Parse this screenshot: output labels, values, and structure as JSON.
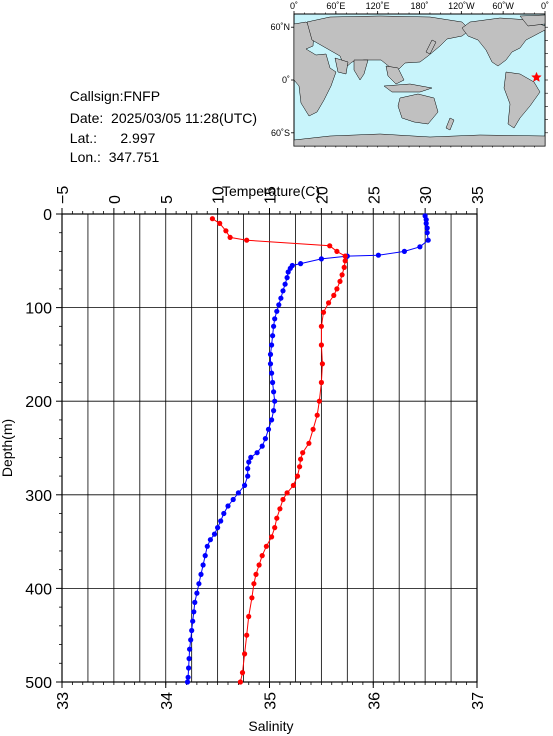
{
  "station": {
    "callsign_label": "Callsign:",
    "callsign": "FNFP",
    "date_label": "Date:",
    "date": "2025/03/05 11:28(UTC)",
    "lat_label": "Lat.:",
    "lat": "2.997",
    "lon_label": "Lon.:",
    "lon": "347.751"
  },
  "map": {
    "top_ticks": [
      "0˚",
      "60˚E",
      "120˚E",
      "180˚",
      "120˚W",
      "60˚W",
      "0˚"
    ],
    "left_ticks": [
      "60˚N",
      "0˚",
      "60˚S"
    ],
    "colors": {
      "ocean": "#c8f4fb",
      "land": "#c0c0c0",
      "marker": "#ff0000"
    },
    "marker": {
      "lon": 347.751,
      "lat": 2.997,
      "symbol": "star"
    }
  },
  "chart_data": {
    "type": "line",
    "title": "",
    "xlabel_top": "Temperature(C)",
    "xlabel_bottom": "Salinity",
    "ylabel": "Depth(m)",
    "temperature_range": [
      -5,
      35
    ],
    "salinity_range": [
      33,
      37
    ],
    "depth_range": [
      0,
      500
    ],
    "y_inverted": true,
    "grid": true,
    "temperature_ticks": [
      "−5",
      "0",
      "5",
      "10",
      "15",
      "20",
      "25",
      "30",
      "35"
    ],
    "salinity_ticks": [
      "33",
      "34",
      "35",
      "36",
      "37"
    ],
    "depth_ticks": [
      "0",
      "100",
      "200",
      "300",
      "400",
      "500"
    ],
    "series": [
      {
        "variable": "temperature",
        "axis": "top",
        "color": "#0000ff",
        "points": [
          [
            30.0,
            2
          ],
          [
            30.1,
            6
          ],
          [
            30.1,
            10
          ],
          [
            30.2,
            15
          ],
          [
            30.2,
            20
          ],
          [
            30.3,
            28
          ],
          [
            29.5,
            35
          ],
          [
            28.0,
            40
          ],
          [
            25.5,
            44
          ],
          [
            22.5,
            45
          ],
          [
            20.0,
            48
          ],
          [
            18.0,
            53
          ],
          [
            17.2,
            55
          ],
          [
            17.0,
            58
          ],
          [
            16.8,
            62
          ],
          [
            16.7,
            68
          ],
          [
            16.5,
            75
          ],
          [
            16.3,
            82
          ],
          [
            16.1,
            90
          ],
          [
            15.9,
            97
          ],
          [
            15.7,
            104
          ],
          [
            15.5,
            112
          ],
          [
            15.4,
            120
          ],
          [
            15.3,
            130
          ],
          [
            15.2,
            140
          ],
          [
            15.1,
            150
          ],
          [
            15.1,
            160
          ],
          [
            15.2,
            170
          ],
          [
            15.3,
            180
          ],
          [
            15.4,
            190
          ],
          [
            15.5,
            200
          ],
          [
            15.4,
            210
          ],
          [
            15.2,
            220
          ],
          [
            14.9,
            230
          ],
          [
            14.6,
            240
          ],
          [
            14.3,
            248
          ],
          [
            13.8,
            255
          ],
          [
            13.2,
            260
          ],
          [
            13.0,
            265
          ],
          [
            12.9,
            272
          ],
          [
            12.9,
            280
          ],
          [
            12.6,
            290
          ],
          [
            12.0,
            298
          ],
          [
            11.5,
            305
          ],
          [
            11.0,
            312
          ],
          [
            10.6,
            320
          ],
          [
            10.3,
            328
          ],
          [
            10.0,
            335
          ],
          [
            9.7,
            342
          ],
          [
            9.3,
            348
          ],
          [
            9.0,
            355
          ],
          [
            8.8,
            365
          ],
          [
            8.6,
            375
          ],
          [
            8.4,
            385
          ],
          [
            8.2,
            395
          ],
          [
            8.0,
            405
          ],
          [
            7.8,
            415
          ],
          [
            7.7,
            425
          ],
          [
            7.6,
            435
          ],
          [
            7.5,
            445
          ],
          [
            7.4,
            455
          ],
          [
            7.3,
            465
          ],
          [
            7.25,
            475
          ],
          [
            7.2,
            485
          ],
          [
            7.15,
            495
          ],
          [
            7.1,
            500
          ]
        ]
      },
      {
        "variable": "salinity",
        "axis": "bottom",
        "color": "#ff0000",
        "points": [
          [
            34.45,
            5
          ],
          [
            34.52,
            10
          ],
          [
            34.58,
            18
          ],
          [
            34.62,
            25
          ],
          [
            34.78,
            28
          ],
          [
            35.58,
            34
          ],
          [
            35.65,
            40
          ],
          [
            35.73,
            45
          ],
          [
            35.73,
            50
          ],
          [
            35.72,
            57
          ],
          [
            35.7,
            65
          ],
          [
            35.68,
            72
          ],
          [
            35.65,
            80
          ],
          [
            35.62,
            87
          ],
          [
            35.57,
            95
          ],
          [
            35.52,
            105
          ],
          [
            35.5,
            120
          ],
          [
            35.5,
            140
          ],
          [
            35.51,
            160
          ],
          [
            35.5,
            180
          ],
          [
            35.48,
            200
          ],
          [
            35.46,
            215
          ],
          [
            35.42,
            230
          ],
          [
            35.38,
            245
          ],
          [
            35.32,
            255
          ],
          [
            35.3,
            262
          ],
          [
            35.29,
            270
          ],
          [
            35.27,
            280
          ],
          [
            35.23,
            290
          ],
          [
            35.17,
            298
          ],
          [
            35.13,
            305
          ],
          [
            35.1,
            315
          ],
          [
            35.07,
            325
          ],
          [
            35.05,
            335
          ],
          [
            35.02,
            345
          ],
          [
            34.97,
            355
          ],
          [
            34.93,
            365
          ],
          [
            34.9,
            375
          ],
          [
            34.87,
            385
          ],
          [
            34.85,
            395
          ],
          [
            34.83,
            410
          ],
          [
            34.8,
            430
          ],
          [
            34.78,
            450
          ],
          [
            34.76,
            470
          ],
          [
            34.74,
            490
          ],
          [
            34.72,
            500
          ]
        ]
      }
    ]
  }
}
